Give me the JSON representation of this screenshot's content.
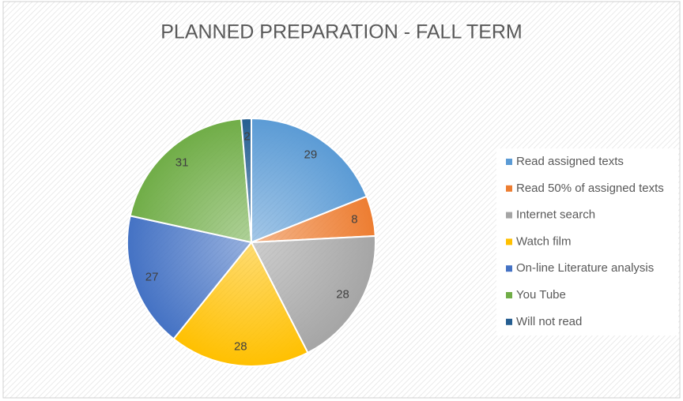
{
  "chart_data": {
    "type": "pie",
    "title": "PLANNED PREPARATION - FALL TERM",
    "categories": [
      "Read assigned texts",
      "Read 50% of assigned texts",
      "Internet search",
      "Watch film",
      "On-line Literature analysis",
      "You Tube",
      "Will not read"
    ],
    "values": [
      29,
      8,
      28,
      28,
      27,
      31,
      2
    ],
    "colors": [
      "#5b9bd5",
      "#ed7d31",
      "#a5a5a5",
      "#ffc000",
      "#4472c4",
      "#70ad47",
      "#255e91"
    ],
    "legend": "right"
  }
}
